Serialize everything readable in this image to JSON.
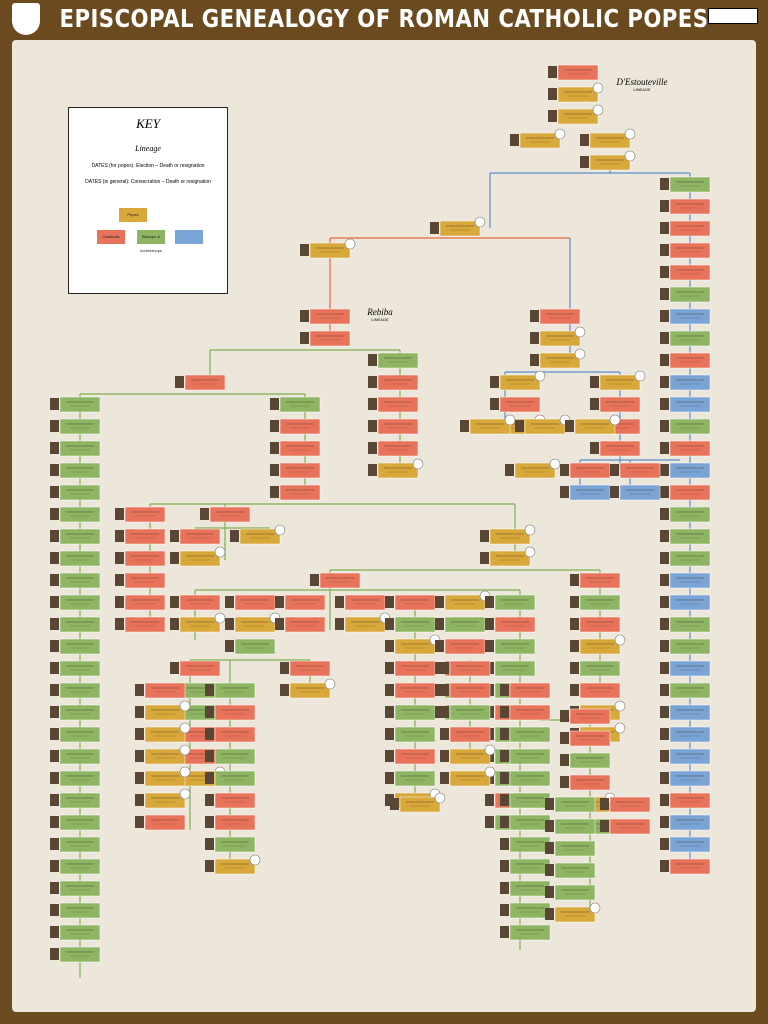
{
  "header": {
    "title": "EPISCOPAL GENEALOGY OF ROMAN CATHOLIC POPES"
  },
  "key": {
    "title": "KEY",
    "lineage": "Lineage",
    "dates_popes": "DATES (for popes): Election – Death or resignation",
    "dates_general": "DATES (in general): Consecration – Death or resignation",
    "popes": "Popes",
    "cardinals": "Cardinals",
    "bishops": "Bishops & Archbishops"
  },
  "lineages": [
    {
      "name": "D'Estouteville",
      "label": "LINEAGE"
    },
    {
      "name": "Rebiba",
      "label": "LINEAGE"
    }
  ]
}
